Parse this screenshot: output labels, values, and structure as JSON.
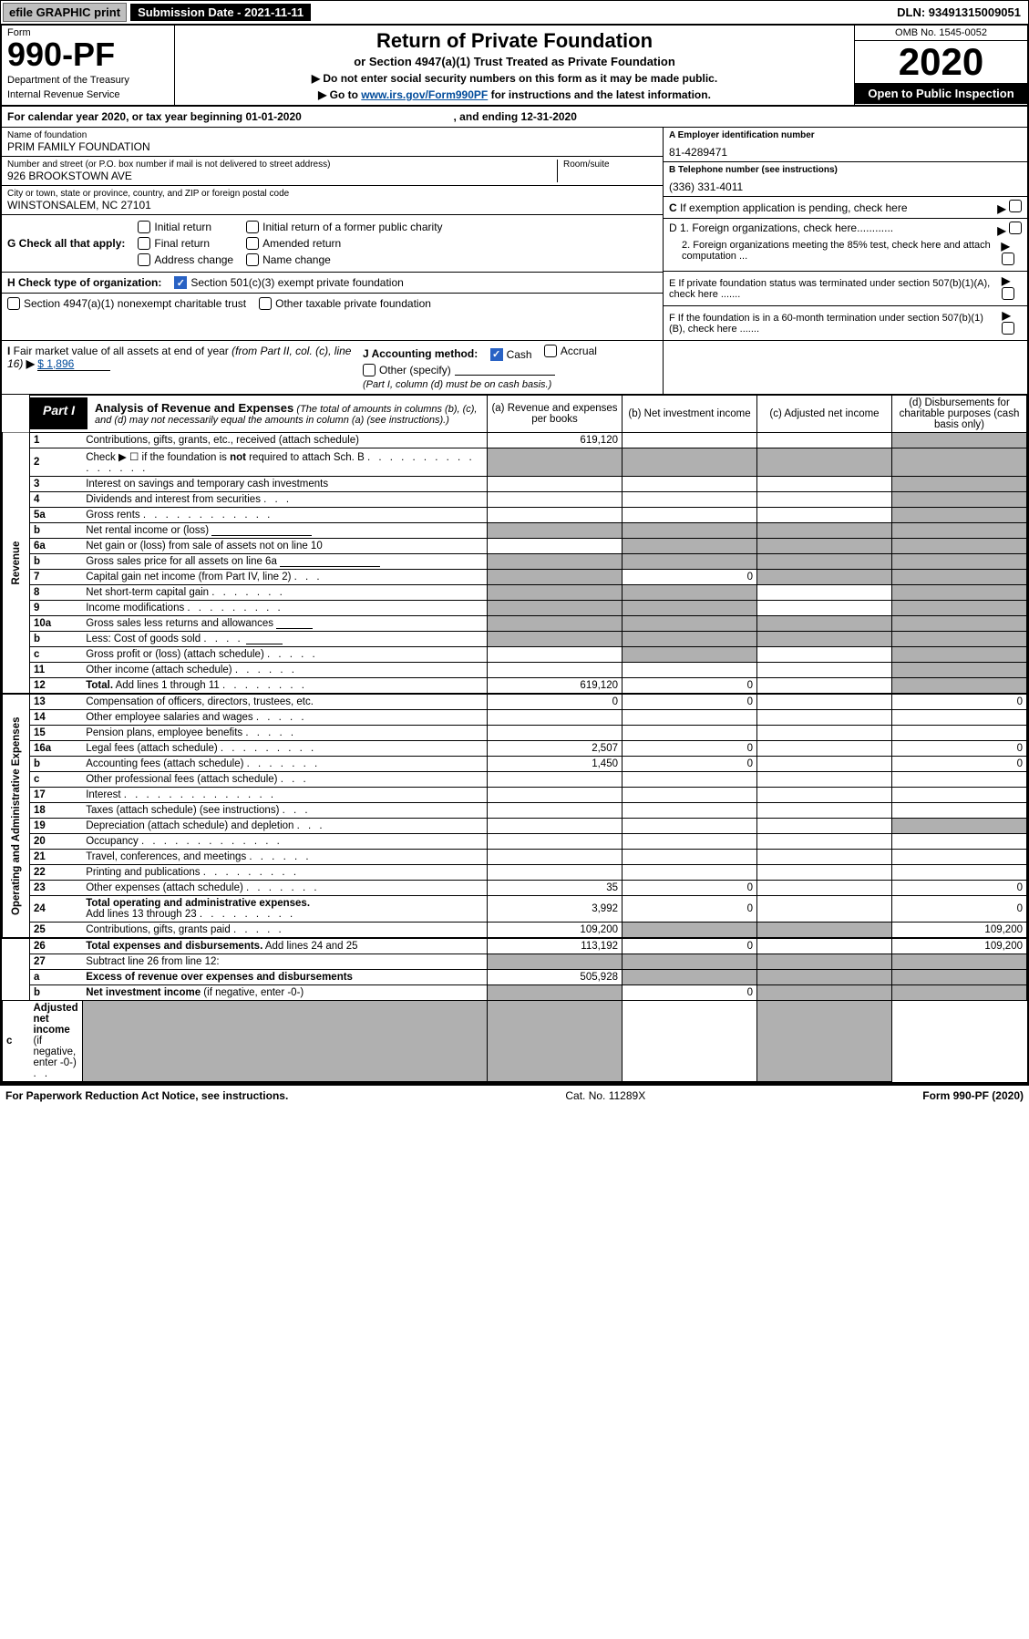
{
  "topbar": {
    "efile": "efile GRAPHIC print",
    "submission": "Submission Date - 2021-11-11",
    "dln": "DLN: 93491315009051"
  },
  "header": {
    "form_label": "Form",
    "form_number": "990-PF",
    "dept1": "Department of the Treasury",
    "dept2": "Internal Revenue Service",
    "title": "Return of Private Foundation",
    "subtitle": "or Section 4947(a)(1) Trust Treated as Private Foundation",
    "warn1": "▶ Do not enter social security numbers on this form as it may be made public.",
    "warn2_pre": "▶ Go to ",
    "warn2_link": "www.irs.gov/Form990PF",
    "warn2_post": " for instructions and the latest information.",
    "omb": "OMB No. 1545-0052",
    "year": "2020",
    "open": "Open to Public Inspection"
  },
  "calendar": {
    "text_a": "For calendar year 2020, or tax year beginning 01-01-2020",
    "text_b": ", and ending 12-31-2020"
  },
  "entity": {
    "name_label": "Name of foundation",
    "name": "PRIM FAMILY FOUNDATION",
    "addr_label": "Number and street (or P.O. box number if mail is not delivered to street address)",
    "addr": "926 BROOKSTOWN AVE",
    "room_label": "Room/suite",
    "city_label": "City or town, state or province, country, and ZIP or foreign postal code",
    "city": "WINSTONSALEM, NC  27101",
    "a_label": "A Employer identification number",
    "a_val": "81-4289471",
    "b_label": "B Telephone number (see instructions)",
    "b_val": "(336) 331-4011",
    "c_label": "C If exemption application is pending, check here",
    "d1": "D 1. Foreign organizations, check here............",
    "d2": "2. Foreign organizations meeting the 85% test, check here and attach computation ...",
    "e": "E  If private foundation status was terminated under section 507(b)(1)(A), check here .......",
    "f": "F  If the foundation is in a 60-month termination under section 507(b)(1)(B), check here ......."
  },
  "g": {
    "label": "G Check all that apply:",
    "opts": [
      "Initial return",
      "Final return",
      "Address change",
      "Initial return of a former public charity",
      "Amended return",
      "Name change"
    ]
  },
  "h": {
    "label": "H Check type of organization:",
    "opt1": "Section 501(c)(3) exempt private foundation",
    "opt2": "Section 4947(a)(1) nonexempt charitable trust",
    "opt3": "Other taxable private foundation"
  },
  "i": {
    "label": "I Fair market value of all assets at end of year (from Part II, col. (c), line 16)",
    "arrow": "▶",
    "val": "$  1,896"
  },
  "j": {
    "label": "J Accounting method:",
    "cash": "Cash",
    "accrual": "Accrual",
    "other": "Other (specify)",
    "note": "(Part I, column (d) must be on cash basis.)"
  },
  "part1": {
    "badge": "Part I",
    "title": "Analysis of Revenue and Expenses",
    "note": "(The total of amounts in columns (b), (c), and (d) may not necessarily equal the amounts in column (a) (see instructions).)",
    "cols": {
      "a": "(a)   Revenue and expenses per books",
      "b": "(b)   Net investment income",
      "c": "(c)   Adjusted net income",
      "d": "(d)   Disbursements for charitable purposes (cash basis only)"
    }
  },
  "side": {
    "rev": "Revenue",
    "exp": "Operating and Administrative Expenses"
  },
  "rows": [
    {
      "no": "1",
      "desc": "Contributions, gifts, grants, etc., received (attach schedule)",
      "a": "619,120",
      "b": "",
      "c": "",
      "d": "grey"
    },
    {
      "no": "2",
      "desc": "Check ▶ ☐ if the foundation is <b>not</b> required to attach Sch. B <span class='dots'>. . . . . . . . . . . . . . . .</span>",
      "a": "grey",
      "b": "grey",
      "c": "grey",
      "d": "grey"
    },
    {
      "no": "3",
      "desc": "Interest on savings and temporary cash investments",
      "a": "",
      "b": "",
      "c": "",
      "d": "grey"
    },
    {
      "no": "4",
      "desc": "Dividends and interest from securities <span class='dots'>. . .</span>",
      "a": "",
      "b": "",
      "c": "",
      "d": "grey"
    },
    {
      "no": "5a",
      "desc": "Gross rents <span class='dots'>. . . . . . . . . . . .</span>",
      "a": "",
      "b": "",
      "c": "",
      "d": "grey"
    },
    {
      "no": "b",
      "desc": "Net rental income or (loss) <span class='small-underline'></span>",
      "a": "grey",
      "b": "grey",
      "c": "grey",
      "d": "grey"
    },
    {
      "no": "6a",
      "desc": "Net gain or (loss) from sale of assets not on line 10",
      "a": "",
      "b": "grey",
      "c": "grey",
      "d": "grey"
    },
    {
      "no": "b",
      "desc": "Gross sales price for all assets on line 6a <span class='small-underline'></span>",
      "a": "grey",
      "b": "grey",
      "c": "grey",
      "d": "grey"
    },
    {
      "no": "7",
      "desc": "Capital gain net income (from Part IV, line 2) <span class='dots'>. . .</span>",
      "a": "grey",
      "b": "0",
      "c": "grey",
      "d": "grey"
    },
    {
      "no": "8",
      "desc": "Net short-term capital gain <span class='dots'>. . . . . . .</span>",
      "a": "grey",
      "b": "grey",
      "c": "",
      "d": "grey"
    },
    {
      "no": "9",
      "desc": "Income modifications <span class='dots'>. . . . . . . . .</span>",
      "a": "grey",
      "b": "grey",
      "c": "",
      "d": "grey"
    },
    {
      "no": "10a",
      "desc": "Gross sales less returns and allowances <span class='small-underline' style='min-width:40px'></span>",
      "a": "grey",
      "b": "grey",
      "c": "grey",
      "d": "grey"
    },
    {
      "no": "b",
      "desc": "Less: Cost of goods sold <span class='dots'>. . . .</span> <span class='small-underline' style='min-width:40px'></span>",
      "a": "grey",
      "b": "grey",
      "c": "grey",
      "d": "grey"
    },
    {
      "no": "c",
      "desc": "Gross profit or (loss) (attach schedule) <span class='dots'>. . . . .</span>",
      "a": "",
      "b": "grey",
      "c": "",
      "d": "grey"
    },
    {
      "no": "11",
      "desc": "Other income (attach schedule) <span class='dots'>. . . . . .</span>",
      "a": "",
      "b": "",
      "c": "",
      "d": "grey"
    },
    {
      "no": "12",
      "desc": "<b>Total.</b> Add lines 1 through 11 <span class='dots'>. . . . . . . .</span>",
      "a": "619,120",
      "b": "0",
      "c": "",
      "d": "grey"
    },
    {
      "no": "13",
      "desc": "Compensation of officers, directors, trustees, etc.",
      "a": "0",
      "b": "0",
      "c": "",
      "d": "0"
    },
    {
      "no": "14",
      "desc": "Other employee salaries and wages <span class='dots'>. . . . .</span>",
      "a": "",
      "b": "",
      "c": "",
      "d": ""
    },
    {
      "no": "15",
      "desc": "Pension plans, employee benefits <span class='dots'>. . . . .</span>",
      "a": "",
      "b": "",
      "c": "",
      "d": ""
    },
    {
      "no": "16a",
      "desc": "Legal fees (attach schedule) <span class='dots'>. . . . . . . . .</span>",
      "a": "2,507",
      "b": "0",
      "c": "",
      "d": "0"
    },
    {
      "no": "b",
      "desc": "Accounting fees (attach schedule) <span class='dots'>. . . . . . .</span>",
      "a": "1,450",
      "b": "0",
      "c": "",
      "d": "0"
    },
    {
      "no": "c",
      "desc": "Other professional fees (attach schedule) <span class='dots'>. . .</span>",
      "a": "",
      "b": "",
      "c": "",
      "d": ""
    },
    {
      "no": "17",
      "desc": "Interest <span class='dots'>. . . . . . . . . . . . . .</span>",
      "a": "",
      "b": "",
      "c": "",
      "d": ""
    },
    {
      "no": "18",
      "desc": "Taxes (attach schedule) (see instructions) <span class='dots'>. . .</span>",
      "a": "",
      "b": "",
      "c": "",
      "d": ""
    },
    {
      "no": "19",
      "desc": "Depreciation (attach schedule) and depletion <span class='dots'>. . .</span>",
      "a": "",
      "b": "",
      "c": "",
      "d": "grey"
    },
    {
      "no": "20",
      "desc": "Occupancy <span class='dots'>. . . . . . . . . . . . .</span>",
      "a": "",
      "b": "",
      "c": "",
      "d": ""
    },
    {
      "no": "21",
      "desc": "Travel, conferences, and meetings <span class='dots'>. . . . . .</span>",
      "a": "",
      "b": "",
      "c": "",
      "d": ""
    },
    {
      "no": "22",
      "desc": "Printing and publications <span class='dots'>. . . . . . . . .</span>",
      "a": "",
      "b": "",
      "c": "",
      "d": ""
    },
    {
      "no": "23",
      "desc": "Other expenses (attach schedule) <span class='dots'>. . . . . . .</span>",
      "a": "35",
      "b": "0",
      "c": "",
      "d": "0"
    },
    {
      "no": "24",
      "desc": "<b>Total operating and administrative expenses.</b><br>Add lines 13 through 23 <span class='dots'>. . . . . . . . .</span>",
      "a": "3,992",
      "b": "0",
      "c": "",
      "d": "0"
    },
    {
      "no": "25",
      "desc": "Contributions, gifts, grants paid <span class='dots'>. . . . .</span>",
      "a": "109,200",
      "b": "grey",
      "c": "grey",
      "d": "109,200"
    },
    {
      "no": "26",
      "desc": "<b>Total expenses and disbursements.</b> Add lines 24 and 25",
      "a": "113,192",
      "b": "0",
      "c": "",
      "d": "109,200"
    },
    {
      "no": "27",
      "desc": "Subtract line 26 from line 12:",
      "a": "grey",
      "b": "grey",
      "c": "grey",
      "d": "grey"
    },
    {
      "no": "a",
      "desc": "<b>Excess of revenue over expenses and disbursements</b>",
      "a": "505,928",
      "b": "grey",
      "c": "grey",
      "d": "grey"
    },
    {
      "no": "b",
      "desc": "<b>Net investment income</b> (if negative, enter -0-)",
      "a": "grey",
      "b": "0",
      "c": "grey",
      "d": "grey"
    },
    {
      "no": "c",
      "desc": "<b>Adjusted net income</b> (if negative, enter -0-) <span class='dots'>. .</span>",
      "a": "grey",
      "b": "grey",
      "c": "",
      "d": "grey"
    }
  ],
  "footer": {
    "left": "For Paperwork Reduction Act Notice, see instructions.",
    "mid": "Cat. No. 11289X",
    "right": "Form 990-PF (2020)"
  },
  "colors": {
    "grey": "#b0b0b0",
    "link": "#004b9b",
    "check": "#2962c4"
  },
  "table_layout": {
    "side_col_w": 28,
    "no_col_w": 34,
    "desc_col_w": 470,
    "val_col_w": 148
  }
}
